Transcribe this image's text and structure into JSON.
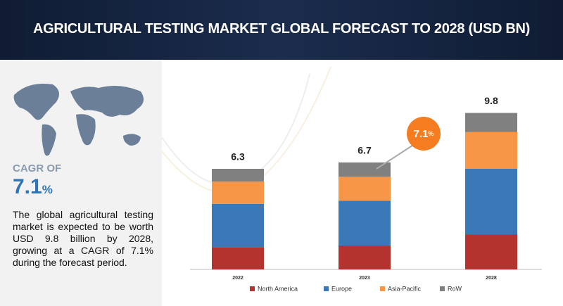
{
  "header": {
    "title": "AGRICULTURAL TESTING MARKET GLOBAL FORECAST TO 2028 (USD BN)"
  },
  "sidebar": {
    "cagr_label": "CAGR OF",
    "cagr_value": "7.1",
    "cagr_unit": "%",
    "description": "The global agricultural testing market is expected to be worth USD 9.8 billion by 2028, growing at a CAGR of 7.1% during the forecast period."
  },
  "chart_data": {
    "type": "bar",
    "stacked": true,
    "categories": [
      "2022",
      "2023",
      "2028"
    ],
    "series": [
      {
        "name": "North America",
        "color": "#b5332e",
        "values": [
          1.4,
          1.5,
          2.2
        ]
      },
      {
        "name": "Europe",
        "color": "#3a78b8",
        "values": [
          2.7,
          2.8,
          4.1
        ]
      },
      {
        "name": "Asia-Pacific",
        "color": "#f79646",
        "values": [
          1.4,
          1.5,
          2.3
        ]
      },
      {
        "name": "RoW",
        "color": "#808080",
        "values": [
          0.8,
          0.9,
          1.2
        ]
      }
    ],
    "totals": [
      6.3,
      6.7,
      9.8
    ],
    "annotation": {
      "value": "7.1",
      "unit": "%",
      "color": "#f57c1f"
    }
  }
}
